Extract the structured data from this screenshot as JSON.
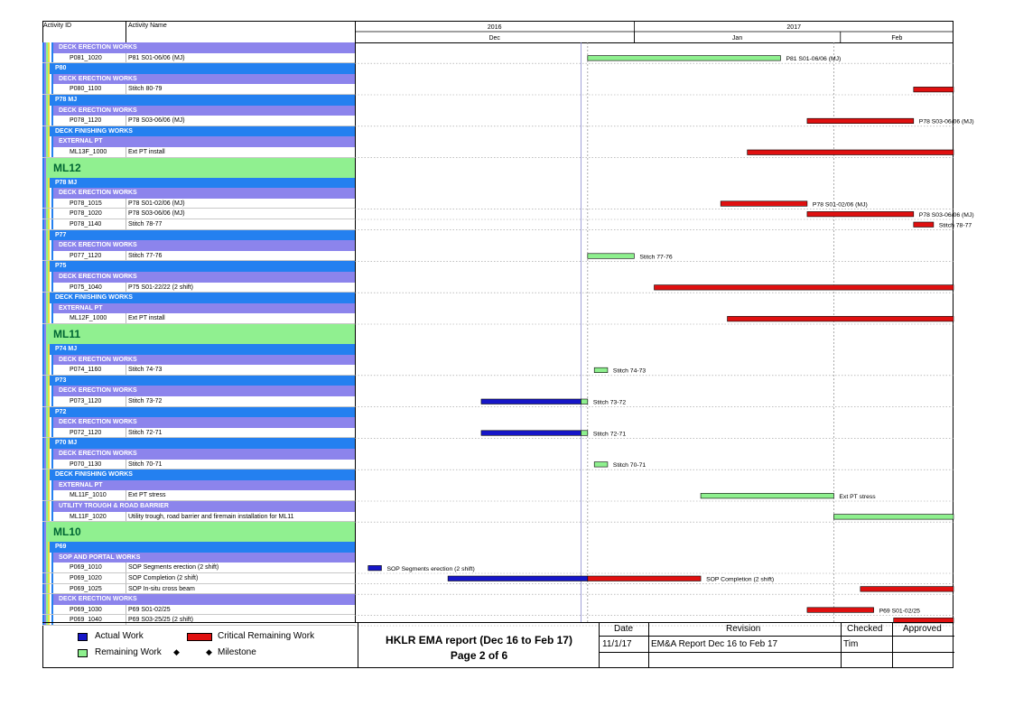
{
  "columns": {
    "activity_id": "Activity ID",
    "activity_name": "Activity Name"
  },
  "timescale": {
    "years": [
      {
        "label": "2016"
      },
      {
        "label": "2017"
      }
    ],
    "months": [
      {
        "label": "Dec"
      },
      {
        "label": "Jan"
      },
      {
        "label": "Feb"
      }
    ]
  },
  "colors": {
    "actual": "#1616c8",
    "critical": "#e01010",
    "remaining": "#8ef08e",
    "level_header": "#2480f0",
    "work_header": "#8c84ec",
    "ml_header": "#90f090"
  },
  "rows": [
    {
      "kind": "work",
      "text": "DECK ERECTION WORKS"
    },
    {
      "kind": "act",
      "id": "P081_1020",
      "name": "P81 S01-06/06 (MJ)"
    },
    {
      "kind": "level",
      "text": "P80"
    },
    {
      "kind": "work",
      "text": "DECK ERECTION WORKS"
    },
    {
      "kind": "act",
      "id": "P080_1100",
      "name": "Stitch 80-79"
    },
    {
      "kind": "level",
      "text": "P78 MJ"
    },
    {
      "kind": "work",
      "text": "DECK ERECTION WORKS"
    },
    {
      "kind": "act",
      "id": "P078_1120",
      "name": "P78 S03-06/06 (MJ)"
    },
    {
      "kind": "level",
      "text": "DECK FINISHING WORKS"
    },
    {
      "kind": "work",
      "text": "EXTERNAL PT"
    },
    {
      "kind": "act",
      "id": "ML13F_1000",
      "name": "Ext PT install"
    },
    {
      "kind": "ml",
      "text": "ML12"
    },
    {
      "kind": "level",
      "text": "P78 MJ"
    },
    {
      "kind": "work",
      "text": "DECK ERECTION WORKS"
    },
    {
      "kind": "act",
      "id": "P078_1015",
      "name": "P78 S01-02/06 (MJ)"
    },
    {
      "kind": "act",
      "id": "P078_1020",
      "name": "P78 S03-06/06 (MJ)"
    },
    {
      "kind": "act",
      "id": "P078_1140",
      "name": "Stitch 78-77"
    },
    {
      "kind": "level",
      "text": "P77"
    },
    {
      "kind": "work",
      "text": "DECK ERECTION WORKS"
    },
    {
      "kind": "act",
      "id": "P077_1120",
      "name": "Stitch 77-76"
    },
    {
      "kind": "level",
      "text": "P75"
    },
    {
      "kind": "work",
      "text": "DECK ERECTION WORKS"
    },
    {
      "kind": "act",
      "id": "P075_1040",
      "name": "P75 S01-22/22 (2 shift)"
    },
    {
      "kind": "level",
      "text": "DECK FINISHING WORKS"
    },
    {
      "kind": "work",
      "text": "EXTERNAL PT"
    },
    {
      "kind": "act",
      "id": "ML12F_1000",
      "name": "Ext PT install"
    },
    {
      "kind": "ml",
      "text": "ML11"
    },
    {
      "kind": "level",
      "text": "P74 MJ"
    },
    {
      "kind": "work",
      "text": "DECK ERECTION WORKS"
    },
    {
      "kind": "act",
      "id": "P074_1160",
      "name": "Stitch 74-73"
    },
    {
      "kind": "level",
      "text": "P73"
    },
    {
      "kind": "work",
      "text": "DECK ERECTION WORKS"
    },
    {
      "kind": "act",
      "id": "P073_1120",
      "name": "Stitch 73-72"
    },
    {
      "kind": "level",
      "text": "P72"
    },
    {
      "kind": "work",
      "text": "DECK ERECTION WORKS"
    },
    {
      "kind": "act",
      "id": "P072_1120",
      "name": "Stitch 72-71"
    },
    {
      "kind": "level",
      "text": "P70 MJ"
    },
    {
      "kind": "work",
      "text": "DECK ERECTION WORKS"
    },
    {
      "kind": "act",
      "id": "P070_1130",
      "name": "Stitch 70-71"
    },
    {
      "kind": "level",
      "text": "DECK FINISHING WORKS"
    },
    {
      "kind": "work",
      "text": "EXTERNAL PT"
    },
    {
      "kind": "act",
      "id": "ML11F_1010",
      "name": "Ext PT stress"
    },
    {
      "kind": "work",
      "text": "UTILITY TROUGH & ROAD BARRIER"
    },
    {
      "kind": "act",
      "id": "ML11F_1020",
      "name": "Utility trough, road barrier and firemain installation for ML11"
    },
    {
      "kind": "ml",
      "text": "ML10"
    },
    {
      "kind": "level",
      "text": "P69"
    },
    {
      "kind": "work",
      "text": "SOP AND PORTAL WORKS"
    },
    {
      "kind": "act",
      "id": "P069_1010",
      "name": "SOP Segments erection (2 shift)"
    },
    {
      "kind": "act",
      "id": "P069_1020",
      "name": "SOP Completion (2 shift)"
    },
    {
      "kind": "act",
      "id": "P069_1025",
      "name": "SOP In-situ cross beam"
    },
    {
      "kind": "work",
      "text": "DECK ERECTION WORKS"
    },
    {
      "kind": "act",
      "id": "P069_1030",
      "name": "P69 S01-02/25"
    },
    {
      "kind": "act",
      "id": "P069_1040",
      "name": "P69 S03-25/25 (2 shift)"
    }
  ],
  "chart_data": {
    "type": "gantt",
    "title": "HKLR EMA report (Dec 16 to Feb 17)",
    "x_domain": [
      "2016-11-20",
      "2017-02-18"
    ],
    "date_markers": {
      "month_starts": [
        "2016-12-01",
        "2017-01-01",
        "2017-02-01"
      ],
      "data_date": "2016-12-24",
      "dotted": [
        "2016-12-25",
        "2017-01-31"
      ]
    },
    "bars": [
      {
        "row": 1,
        "type": "remaining",
        "start": "2016-12-25",
        "end": "2017-01-23",
        "label": "P81 S01-06/06 (MJ)"
      },
      {
        "row": 4,
        "type": "critical",
        "start": "2017-02-12",
        "end": "2017-02-18",
        "label": ""
      },
      {
        "row": 7,
        "type": "critical",
        "start": "2017-01-27",
        "end": "2017-02-12",
        "label": "P78 S03-06/06 (MJ)"
      },
      {
        "row": 10,
        "type": "critical",
        "start": "2017-01-18",
        "end": "2017-02-18",
        "label": ""
      },
      {
        "row": 14,
        "type": "critical",
        "start": "2017-01-14",
        "end": "2017-01-27",
        "label": "P78 S01-02/06 (MJ)"
      },
      {
        "row": 15,
        "type": "critical",
        "start": "2017-01-27",
        "end": "2017-02-12",
        "label": "P78 S03-06/06 (MJ)"
      },
      {
        "row": 16,
        "type": "critical",
        "start": "2017-02-12",
        "end": "2017-02-15",
        "label": "Stitch 78-77"
      },
      {
        "row": 19,
        "type": "remaining",
        "start": "2016-12-25",
        "end": "2017-01-01",
        "label": "Stitch 77-76"
      },
      {
        "row": 22,
        "type": "critical",
        "start": "2017-01-04",
        "end": "2017-02-18",
        "label": ""
      },
      {
        "row": 25,
        "type": "critical",
        "start": "2017-01-15",
        "end": "2017-02-18",
        "label": ""
      },
      {
        "row": 29,
        "type": "remaining",
        "start": "2016-12-26",
        "end": "2016-12-28",
        "label": "Stitch 74-73"
      },
      {
        "row": 32,
        "type": "actual",
        "start": "2016-12-09",
        "end": "2016-12-24",
        "label": ""
      },
      {
        "row": 32,
        "type": "remaining",
        "start": "2016-12-24",
        "end": "2016-12-25",
        "label": "Stitch 73-72"
      },
      {
        "row": 35,
        "type": "actual",
        "start": "2016-12-09",
        "end": "2016-12-24",
        "label": ""
      },
      {
        "row": 35,
        "type": "remaining",
        "start": "2016-12-24",
        "end": "2016-12-25",
        "label": "Stitch 72-71"
      },
      {
        "row": 38,
        "type": "remaining",
        "start": "2016-12-26",
        "end": "2016-12-28",
        "label": "Stitch 70-71"
      },
      {
        "row": 41,
        "type": "remaining",
        "start": "2017-01-11",
        "end": "2017-01-31",
        "label": "Ext PT stress"
      },
      {
        "row": 43,
        "type": "remaining",
        "start": "2017-01-31",
        "end": "2017-02-18",
        "label": ""
      },
      {
        "row": 47,
        "type": "actual",
        "start": "2016-11-22",
        "end": "2016-11-24",
        "label": "SOP Segments erection (2 shift)"
      },
      {
        "row": 48,
        "type": "actual",
        "start": "2016-12-04",
        "end": "2016-12-25",
        "label": ""
      },
      {
        "row": 48,
        "type": "critical",
        "start": "2016-12-25",
        "end": "2017-01-11",
        "label": "SOP Completion (2 shift)"
      },
      {
        "row": 49,
        "type": "critical",
        "start": "2017-02-04",
        "end": "2017-02-18",
        "label": ""
      },
      {
        "row": 51,
        "type": "critical",
        "start": "2017-01-27",
        "end": "2017-02-06",
        "label": "P69 S01-02/25"
      },
      {
        "row": 52,
        "type": "critical",
        "start": "2017-02-09",
        "end": "2017-02-18",
        "label": ""
      }
    ]
  },
  "legend": {
    "actual": "Actual Work",
    "critical": "Critical Remaining Work",
    "remaining": "Remaining Work",
    "milestone": "Milestone",
    "diamond": "◆"
  },
  "title_block": {
    "title": "HKLR EMA report (Dec 16 to Feb 17)",
    "page": "Page 2 of 6"
  },
  "revision_table": {
    "headers": {
      "date": "Date",
      "revision": "Revision",
      "checked": "Checked",
      "approved": "Approved"
    },
    "row": {
      "date": "11/1/17",
      "revision": "EM&A Report Dec 16 to Feb 17",
      "checked": "Tim",
      "approved": ""
    }
  }
}
